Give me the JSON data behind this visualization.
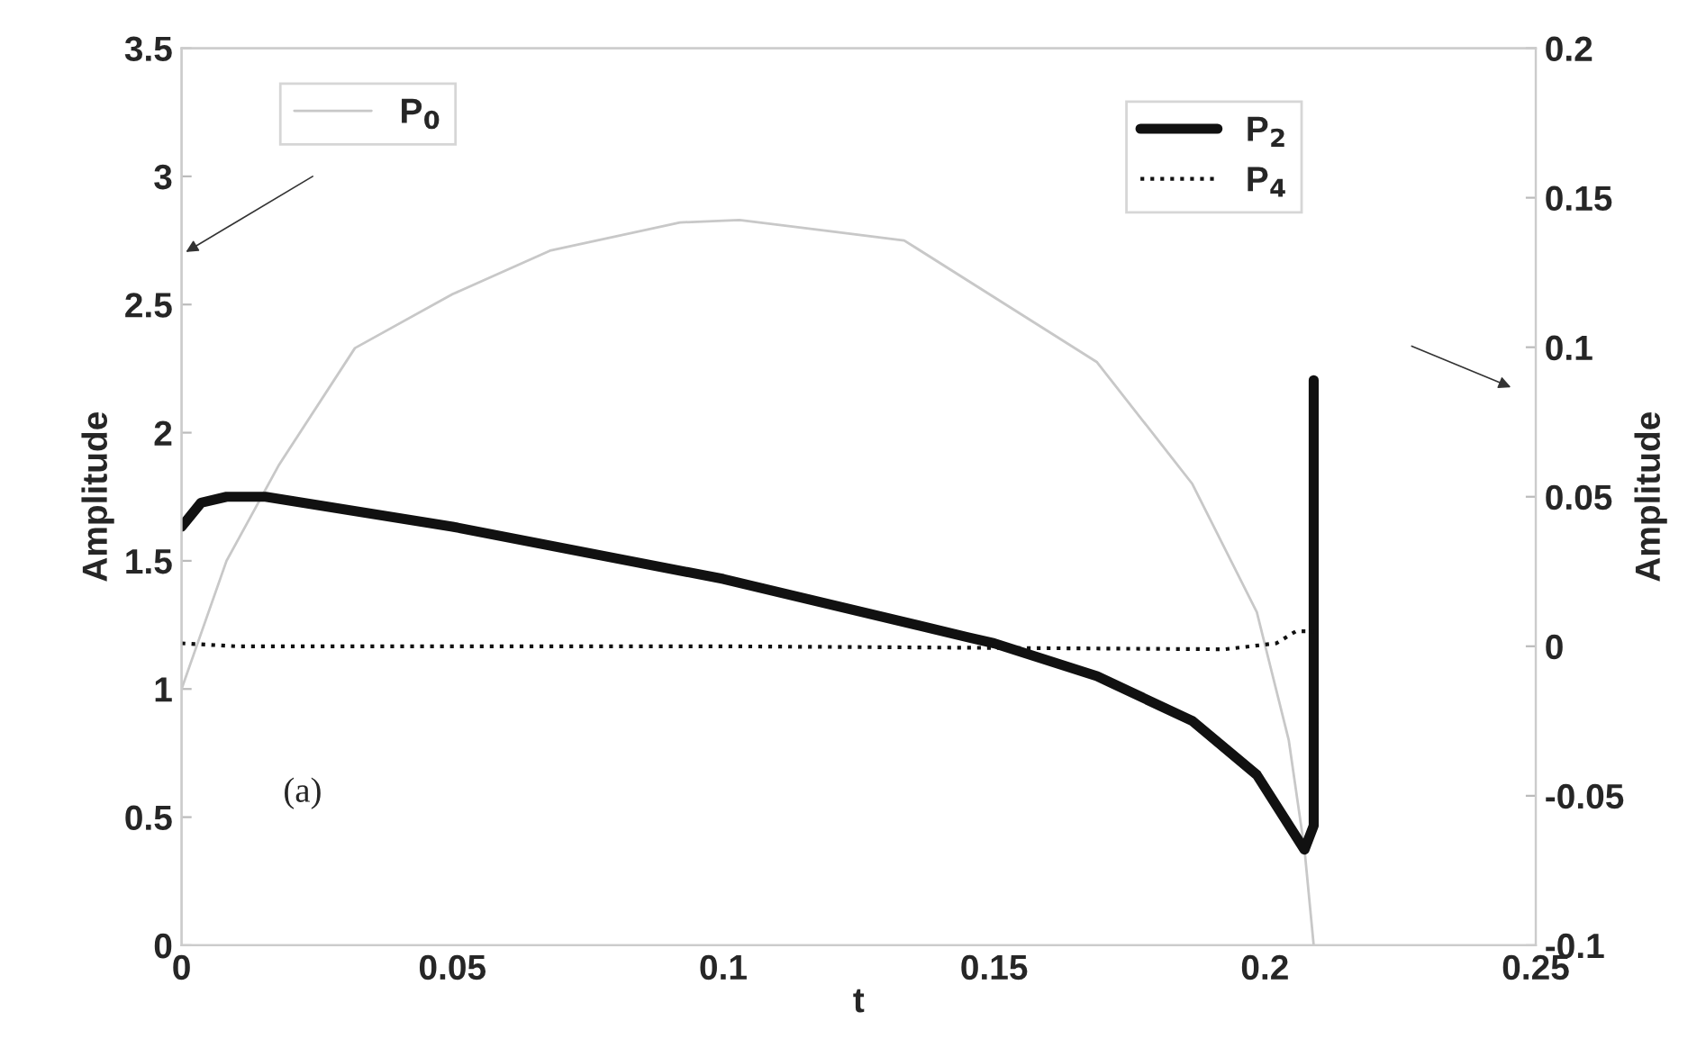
{
  "chart_data": {
    "type": "line",
    "xlabel": "t",
    "ylabel": "Amplitude",
    "y2label": "Amplitude",
    "xlim": [
      0,
      0.25
    ],
    "xticks": [
      0,
      0.05,
      0.1,
      0.15,
      0.2,
      0.25
    ],
    "ylim": [
      0,
      3.5
    ],
    "yticks": [
      0,
      0.5,
      1,
      1.5,
      2,
      2.5,
      3,
      3.5
    ],
    "y2lim": [
      -0.1,
      0.2
    ],
    "y2ticks": [
      -0.1,
      -0.05,
      0,
      0.05,
      0.1,
      0.15,
      0.2
    ],
    "grid": false,
    "legend": "top",
    "marker": "none",
    "annotations": [
      "(a)"
    ],
    "series": [
      {
        "name": "P$_{0}$",
        "color": "#c8c8c8",
        "line_style": "solid",
        "axis": "y",
        "x": [
          0,
          0.0083,
          0.018,
          0.032,
          0.05,
          0.068,
          0.092,
          0.103,
          0.1334,
          0.169,
          0.1866,
          0.1985,
          0.2044,
          0.2073,
          0.209
        ],
        "values": [
          1.0,
          1.5,
          1.875,
          2.33,
          2.54,
          2.71,
          2.82,
          2.83,
          2.75,
          2.275,
          1.8,
          1.3,
          0.8,
          0.375,
          0
        ]
      },
      {
        "name": "P$_{2}$",
        "color": "#111111",
        "line_style": "solid",
        "axis": "y2",
        "x": [
          0,
          0.0036,
          0.0083,
          0.0155,
          0.05,
          0.1,
          0.1452,
          0.15,
          0.169,
          0.1866,
          0.1985,
          0.2073,
          0.209,
          0.209
        ],
        "values": [
          0.04,
          0.048,
          0.05,
          0.05,
          0.04,
          0.0225,
          0.003,
          0.001,
          -0.01,
          -0.025,
          -0.043,
          -0.068,
          -0.06,
          0.089
        ]
      },
      {
        "name": "P$_{4}$",
        "color": "#111111",
        "line_style": "dotted",
        "axis": "y2",
        "x": [
          0,
          0.01,
          0.1,
          0.1926,
          0.2021,
          0.2057,
          0.209
        ],
        "values": [
          0.001,
          0,
          0,
          -0.001,
          0.001,
          0.005,
          0.005
        ]
      }
    ]
  }
}
